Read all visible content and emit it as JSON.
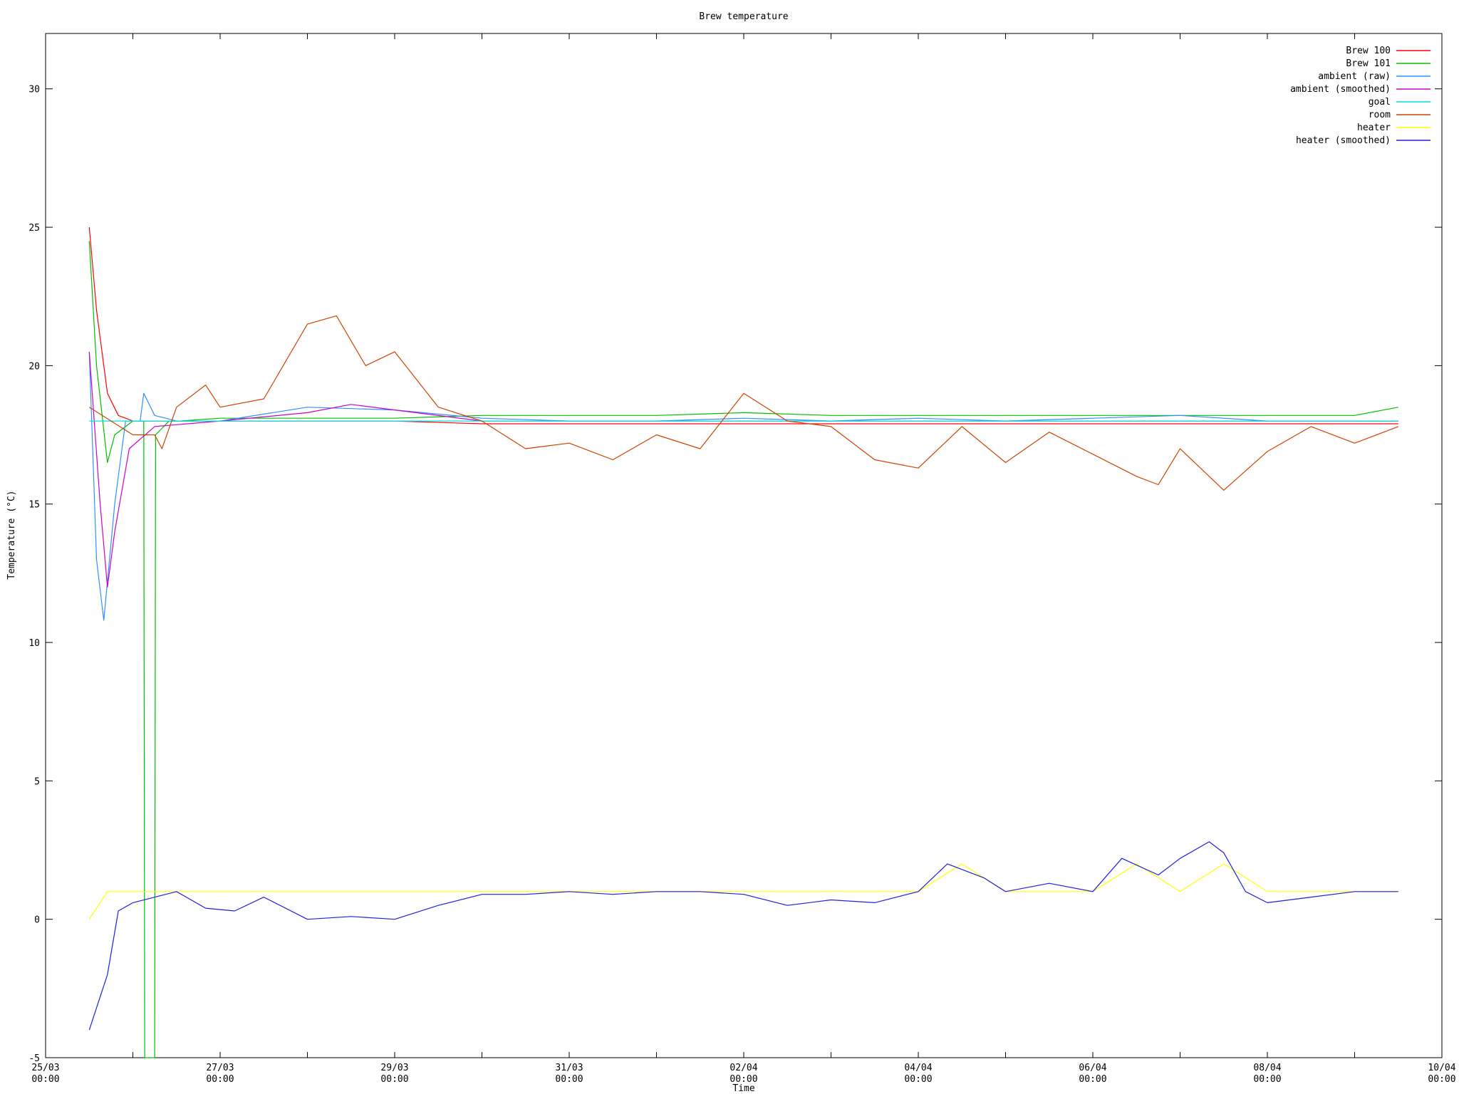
{
  "chart_data": {
    "type": "line",
    "title": "Brew temperature",
    "xlabel": "Time",
    "ylabel": "Temperature (°C)",
    "xlim": [
      "2012-03-25T00:00",
      "2012-04-10T00:00"
    ],
    "ylim": [
      -5,
      32
    ],
    "x_ticks": [
      {
        "x": "2012-03-25T00:00",
        "line1": "25/03",
        "line2": "00:00"
      },
      {
        "x": "2012-03-27T00:00",
        "line1": "27/03",
        "line2": "00:00"
      },
      {
        "x": "2012-03-29T00:00",
        "line1": "29/03",
        "line2": "00:00"
      },
      {
        "x": "2012-03-31T00:00",
        "line1": "31/03",
        "line2": "00:00"
      },
      {
        "x": "2012-04-02T00:00",
        "line1": "02/04",
        "line2": "00:00"
      },
      {
        "x": "2012-04-04T00:00",
        "line1": "04/04",
        "line2": "00:00"
      },
      {
        "x": "2012-04-06T00:00",
        "line1": "06/04",
        "line2": "00:00"
      },
      {
        "x": "2012-04-08T00:00",
        "line1": "08/04",
        "line2": "00:00"
      },
      {
        "x": "2012-04-10T00:00",
        "line1": "10/04",
        "line2": "00:00"
      }
    ],
    "y_ticks": [
      {
        "y": -5,
        "label": "-5"
      },
      {
        "y": 0,
        "label": "0"
      },
      {
        "y": 5,
        "label": "5"
      },
      {
        "y": 10,
        "label": "10"
      },
      {
        "y": 15,
        "label": "15"
      },
      {
        "y": 20,
        "label": "20"
      },
      {
        "y": 25,
        "label": "25"
      },
      {
        "y": 30,
        "label": "30"
      }
    ],
    "grid": false,
    "legend_position": "top-right",
    "series": [
      {
        "name": "Brew 100",
        "color": "#ff0000",
        "x": [
          "2012-03-25T12:00",
          "2012-03-25T14:00",
          "2012-03-25T17:00",
          "2012-03-25T20:00",
          "2012-03-26T00:00",
          "2012-03-26T06:00",
          "2012-03-26T12:00",
          "2012-03-27T00:00",
          "2012-03-28T00:00",
          "2012-03-29T00:00",
          "2012-03-30T00:00",
          "2012-03-31T00:00",
          "2012-04-01T00:00",
          "2012-04-02T00:00",
          "2012-04-03T00:00",
          "2012-04-04T00:00",
          "2012-04-05T00:00",
          "2012-04-06T00:00",
          "2012-04-07T00:00",
          "2012-04-08T00:00",
          "2012-04-09T00:00",
          "2012-04-09T12:00"
        ],
        "y": [
          25.0,
          22.0,
          19.0,
          18.2,
          18.0,
          18.0,
          18.0,
          18.0,
          18.0,
          18.0,
          17.9,
          17.9,
          17.9,
          17.9,
          17.9,
          17.9,
          17.9,
          17.9,
          17.9,
          17.9,
          17.9,
          17.9
        ]
      },
      {
        "name": "Brew 101",
        "color": "#00c000",
        "x": [
          "2012-03-25T12:00",
          "2012-03-25T14:00",
          "2012-03-25T17:00",
          "2012-03-25T19:00",
          "2012-03-26T00:00",
          "2012-03-26T03:00",
          "2012-03-26T03:15",
          "2012-03-26T06:00",
          "2012-03-26T06:15",
          "2012-03-26T10:00",
          "2012-03-26T13:00",
          "2012-03-27T00:00",
          "2012-03-28T00:00",
          "2012-03-29T00:00",
          "2012-03-30T00:00",
          "2012-03-31T00:00",
          "2012-04-01T00:00",
          "2012-04-02T00:00",
          "2012-04-03T00:00",
          "2012-04-04T00:00",
          "2012-04-05T00:00",
          "2012-04-06T00:00",
          "2012-04-07T00:00",
          "2012-04-08T00:00",
          "2012-04-09T00:00",
          "2012-04-09T12:00"
        ],
        "y": [
          24.5,
          20.0,
          16.5,
          17.5,
          18.0,
          18.0,
          -5.0,
          -5.0,
          17.5,
          18.0,
          18.0,
          18.1,
          18.1,
          18.1,
          18.2,
          18.2,
          18.2,
          18.3,
          18.2,
          18.2,
          18.2,
          18.2,
          18.2,
          18.2,
          18.2,
          18.5
        ]
      },
      {
        "name": "ambient (raw)",
        "color": "#3090ff",
        "x": [
          "2012-03-25T12:00",
          "2012-03-25T14:00",
          "2012-03-25T16:00",
          "2012-03-25T19:00",
          "2012-03-25T22:00",
          "2012-03-26T02:00",
          "2012-03-26T03:00",
          "2012-03-26T06:00",
          "2012-03-26T12:00",
          "2012-03-27T00:00",
          "2012-03-28T00:00",
          "2012-03-29T00:00",
          "2012-03-30T00:00",
          "2012-03-31T00:00",
          "2012-04-01T00:00",
          "2012-04-02T00:00",
          "2012-04-03T00:00",
          "2012-04-04T00:00",
          "2012-04-05T00:00",
          "2012-04-06T00:00",
          "2012-04-07T00:00",
          "2012-04-08T00:00",
          "2012-04-09T00:00",
          "2012-04-09T12:00"
        ],
        "y": [
          20.5,
          13.0,
          10.8,
          15.0,
          18.0,
          18.0,
          19.0,
          18.2,
          18.0,
          18.0,
          18.5,
          18.4,
          18.1,
          18.0,
          18.0,
          18.1,
          18.0,
          18.1,
          18.0,
          18.1,
          18.2,
          18.0,
          18.0,
          18.0
        ]
      },
      {
        "name": "ambient (smoothed)",
        "color": "#cc00cc",
        "x": [
          "2012-03-25T12:00",
          "2012-03-25T15:00",
          "2012-03-25T17:00",
          "2012-03-25T19:00",
          "2012-03-25T23:00",
          "2012-03-26T06:00",
          "2012-03-27T00:00",
          "2012-03-28T00:00",
          "2012-03-28T12:00",
          "2012-03-29T00:00",
          "2012-03-30T00:00",
          "2012-03-31T00:00",
          "2012-04-01T00:00",
          "2012-04-02T00:00",
          "2012-04-03T00:00",
          "2012-04-04T00:00",
          "2012-04-05T00:00",
          "2012-04-06T00:00",
          "2012-04-07T00:00",
          "2012-04-08T00:00",
          "2012-04-09T00:00",
          "2012-04-09T12:00"
        ],
        "y": [
          20.5,
          15.0,
          12.0,
          14.0,
          17.0,
          17.8,
          18.0,
          18.3,
          18.6,
          18.4,
          18.0,
          18.0,
          18.0,
          18.0,
          18.0,
          18.0,
          18.0,
          18.0,
          18.0,
          18.0,
          18.0,
          18.0
        ]
      },
      {
        "name": "goal",
        "color": "#00e0e0",
        "x": [
          "2012-03-25T12:00",
          "2012-04-09T12:00"
        ],
        "y": [
          18.0,
          18.0
        ]
      },
      {
        "name": "room",
        "color": "#cc4400",
        "x": [
          "2012-03-25T12:00",
          "2012-03-25T18:00",
          "2012-03-26T00:00",
          "2012-03-26T06:00",
          "2012-03-26T08:00",
          "2012-03-26T12:00",
          "2012-03-26T20:00",
          "2012-03-27T00:00",
          "2012-03-27T12:00",
          "2012-03-28T00:00",
          "2012-03-28T08:00",
          "2012-03-28T16:00",
          "2012-03-29T00:00",
          "2012-03-29T12:00",
          "2012-03-30T00:00",
          "2012-03-30T12:00",
          "2012-03-31T00:00",
          "2012-03-31T12:00",
          "2012-04-01T00:00",
          "2012-04-01T12:00",
          "2012-04-02T00:00",
          "2012-04-02T12:00",
          "2012-04-03T00:00",
          "2012-04-03T12:00",
          "2012-04-04T00:00",
          "2012-04-04T12:00",
          "2012-04-05T00:00",
          "2012-04-05T12:00",
          "2012-04-06T00:00",
          "2012-04-06T12:00",
          "2012-04-06T18:00",
          "2012-04-07T00:00",
          "2012-04-07T12:00",
          "2012-04-08T00:00",
          "2012-04-08T12:00",
          "2012-04-09T00:00",
          "2012-04-09T12:00"
        ],
        "y": [
          18.5,
          18.0,
          17.5,
          17.5,
          17.0,
          18.5,
          19.3,
          18.5,
          18.8,
          21.5,
          21.8,
          20.0,
          20.5,
          18.5,
          18.0,
          17.0,
          17.2,
          16.6,
          17.5,
          17.0,
          19.0,
          18.0,
          17.8,
          16.6,
          16.3,
          17.8,
          16.5,
          17.6,
          16.8,
          16.0,
          15.7,
          17.0,
          15.5,
          16.9,
          17.8,
          17.2,
          17.8
        ]
      },
      {
        "name": "heater",
        "color": "#ffff00",
        "x": [
          "2012-03-25T12:00",
          "2012-03-25T17:00",
          "2012-03-26T00:00",
          "2012-03-27T00:00",
          "2012-03-28T00:00",
          "2012-03-29T00:00",
          "2012-03-30T00:00",
          "2012-03-31T00:00",
          "2012-04-01T00:00",
          "2012-04-02T00:00",
          "2012-04-03T00:00",
          "2012-04-04T00:00",
          "2012-04-04T12:00",
          "2012-04-05T00:00",
          "2012-04-06T00:00",
          "2012-04-06T12:00",
          "2012-04-07T00:00",
          "2012-04-07T12:00",
          "2012-04-08T00:00",
          "2012-04-09T00:00",
          "2012-04-09T12:00"
        ],
        "y": [
          0,
          1,
          1,
          1,
          1,
          1,
          1,
          1,
          1,
          1,
          1,
          1,
          2,
          1,
          1,
          2,
          1,
          2,
          1,
          1,
          1
        ]
      },
      {
        "name": "heater (smoothed)",
        "color": "#2020e0",
        "x": [
          "2012-03-25T12:00",
          "2012-03-25T17:00",
          "2012-03-25T20:00",
          "2012-03-26T00:00",
          "2012-03-26T12:00",
          "2012-03-26T20:00",
          "2012-03-27T04:00",
          "2012-03-27T12:00",
          "2012-03-28T00:00",
          "2012-03-28T12:00",
          "2012-03-29T00:00",
          "2012-03-29T12:00",
          "2012-03-30T00:00",
          "2012-03-30T12:00",
          "2012-03-31T00:00",
          "2012-03-31T12:00",
          "2012-04-01T00:00",
          "2012-04-01T12:00",
          "2012-04-02T00:00",
          "2012-04-02T12:00",
          "2012-04-03T00:00",
          "2012-04-03T12:00",
          "2012-04-04T00:00",
          "2012-04-04T08:00",
          "2012-04-04T18:00",
          "2012-04-05T00:00",
          "2012-04-05T12:00",
          "2012-04-06T00:00",
          "2012-04-06T08:00",
          "2012-04-06T18:00",
          "2012-04-07T00:00",
          "2012-04-07T08:00",
          "2012-04-07T12:00",
          "2012-04-07T18:00",
          "2012-04-08T00:00",
          "2012-04-08T12:00",
          "2012-04-09T00:00",
          "2012-04-09T12:00"
        ],
        "y": [
          -4.0,
          -2.0,
          0.3,
          0.6,
          1.0,
          0.4,
          0.3,
          0.8,
          0.0,
          0.1,
          0.0,
          0.5,
          0.9,
          0.9,
          1.0,
          0.9,
          1.0,
          1.0,
          0.9,
          0.5,
          0.7,
          0.6,
          1.0,
          2.0,
          1.5,
          1.0,
          1.3,
          1.0,
          2.2,
          1.6,
          2.2,
          2.8,
          2.4,
          1.0,
          0.6,
          0.8,
          1.0,
          1.0
        ]
      }
    ]
  }
}
